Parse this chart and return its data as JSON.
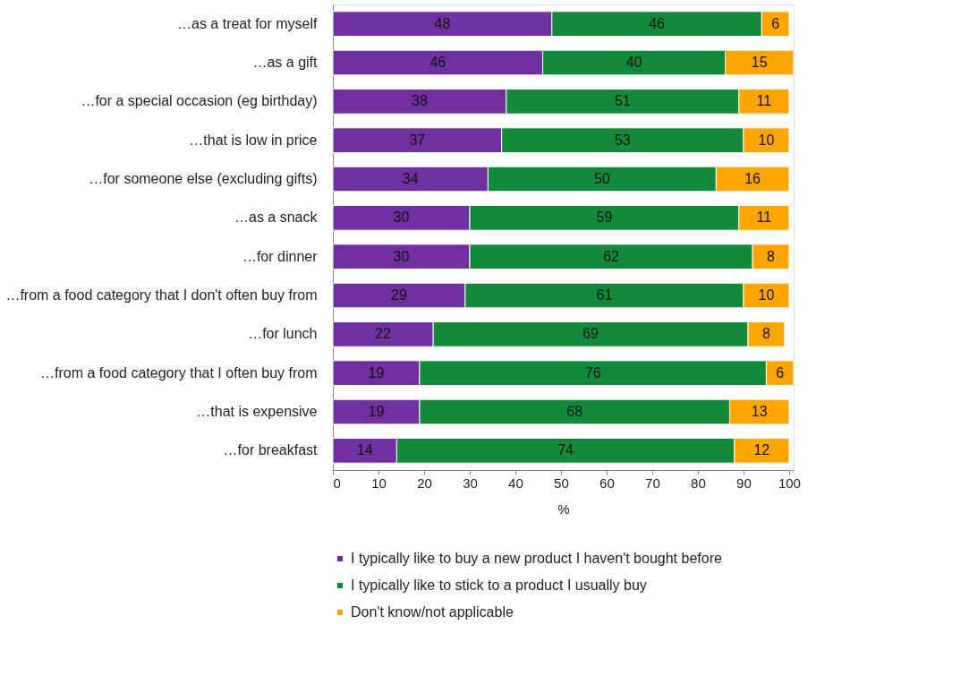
{
  "chart_data": {
    "type": "bar",
    "orientation": "horizontal",
    "stacked": true,
    "data_labels": true,
    "xlabel": "%",
    "xlim": [
      0,
      101
    ],
    "xticks": [
      0,
      10,
      20,
      30,
      40,
      50,
      60,
      70,
      80,
      90,
      100
    ],
    "grid": false,
    "legend": "bottom",
    "marker": "square",
    "categories": [
      "…as a treat for myself",
      "…as a gift",
      "…for a special occasion (eg  birthday)",
      "…that is low in price",
      "…for someone else (excluding gifts)",
      "…as a snack",
      "…for dinner",
      "…from a food category that I don't often buy from",
      "…for lunch",
      "…from a food category that I often buy from",
      "…that is expensive",
      "…for breakfast"
    ],
    "series": [
      {
        "name": "I typically like to buy a new product I haven't bought before",
        "color": "#7030a0",
        "values": [
          48,
          46,
          38,
          37,
          34,
          30,
          30,
          29,
          22,
          19,
          19,
          14
        ]
      },
      {
        "name": "I typically like to stick to a product I usually buy",
        "color": "#138a3b",
        "values": [
          46,
          40,
          51,
          53,
          50,
          59,
          62,
          61,
          69,
          76,
          68,
          74
        ]
      },
      {
        "name": "Don't know/not applicable",
        "color": "#ffa500",
        "values": [
          6,
          15,
          11,
          10,
          16,
          11,
          8,
          10,
          8,
          6,
          13,
          12
        ]
      }
    ]
  }
}
